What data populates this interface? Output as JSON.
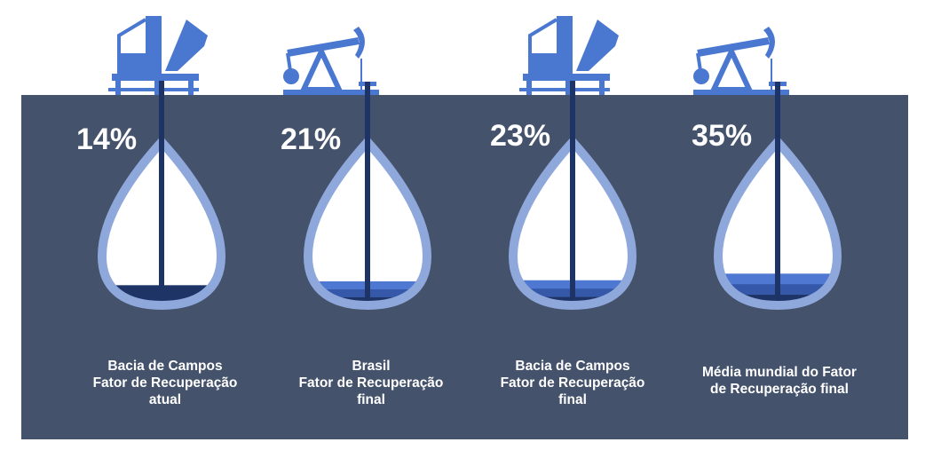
{
  "colors": {
    "ground": "#44526b",
    "rig": "#4a77cf",
    "well_outline": "#8fa8dc",
    "pipe": "#1f3466",
    "oil_dark": "#1f3466",
    "oil_mid": "#3559a8",
    "oil_light": "#4f78d3",
    "text": "#ffffff"
  },
  "wells": [
    {
      "percent_label": "14%",
      "value": 14,
      "rig": "offshore-platform-icon",
      "caption": [
        "Bacia de Campos",
        "Fator de Recuperação",
        "atual"
      ]
    },
    {
      "percent_label": "21%",
      "value": 21,
      "rig": "pumpjack-icon",
      "caption": [
        "Brasil",
        "Fator de Recuperação",
        "final"
      ]
    },
    {
      "percent_label": "23%",
      "value": 23,
      "rig": "offshore-platform-icon",
      "caption": [
        "Bacia de Campos",
        "Fator de Recuperação",
        "final"
      ]
    },
    {
      "percent_label": "35%",
      "value": 35,
      "rig": "pumpjack-icon",
      "caption": [
        "Média mundial do Fator",
        "de Recuperação final"
      ]
    }
  ]
}
